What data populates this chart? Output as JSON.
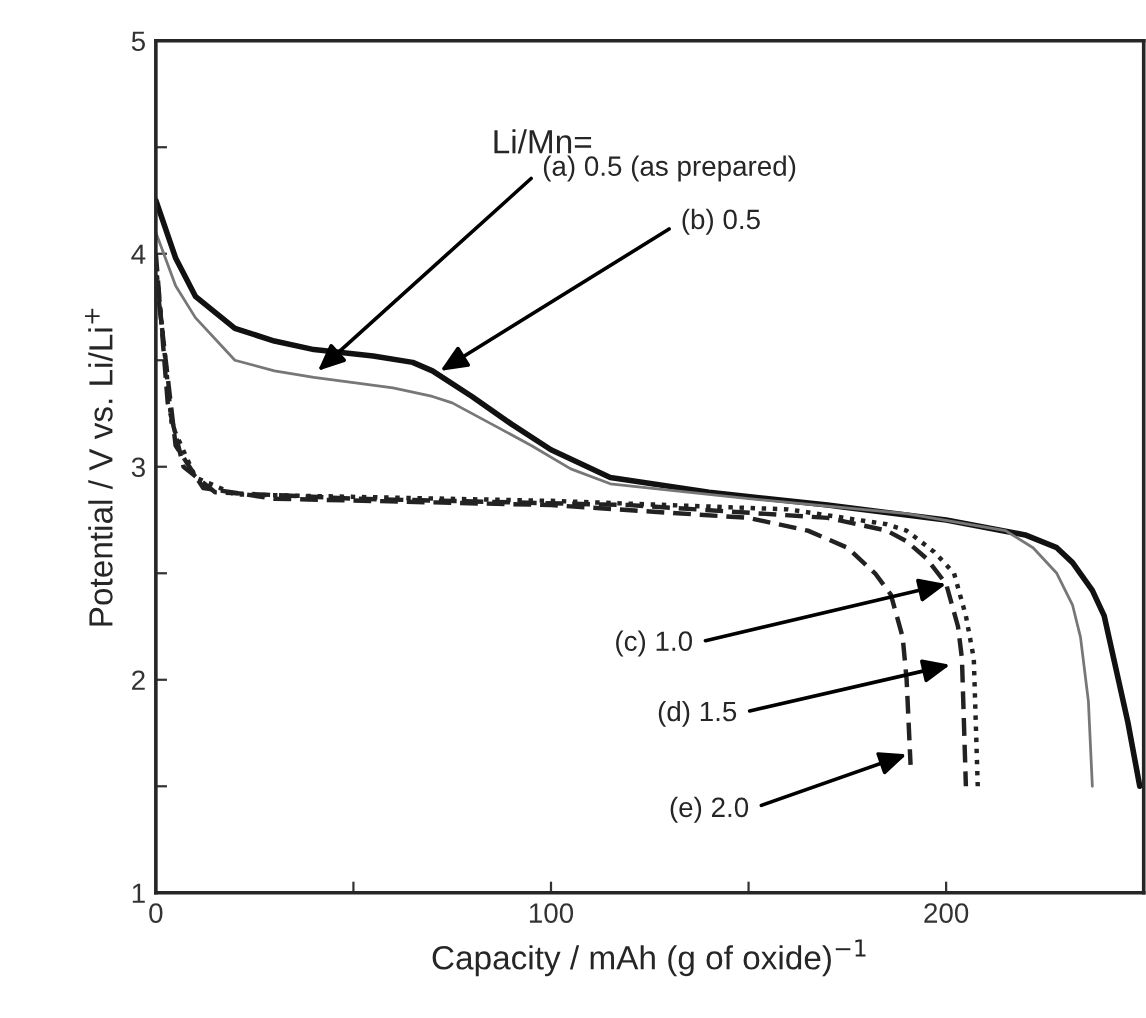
{
  "chart_data": {
    "type": "line",
    "xlabel": "Capacity / mAh (g of oxide)$^{−1}$",
    "ylabel": "Potential / V vs. Li/Li$^{+}$",
    "xlim": [
      0,
      250
    ],
    "ylim": [
      1,
      5
    ],
    "xticks": [
      0,
      {
        "value": 50,
        "label": null
      },
      100,
      {
        "value": 150,
        "label": null
      },
      200
    ],
    "yticks": [
      1,
      {
        "value": 1.5,
        "label": null
      },
      2,
      {
        "value": 2.5,
        "label": null
      },
      3,
      {
        "value": 3.5,
        "label": null
      },
      4,
      {
        "value": 4.5,
        "label": null
      },
      5
    ],
    "grid": false,
    "legend": false,
    "marker": "none",
    "series": [
      {
        "color": "#111111",
        "line_style": "solid",
        "x": [
          0,
          5,
          10,
          20,
          30,
          40,
          55,
          65,
          70,
          80,
          90,
          100,
          115,
          140,
          170,
          200,
          220,
          228,
          232,
          237,
          240,
          243,
          246,
          249
        ],
        "values": [
          4.25,
          3.98,
          3.8,
          3.65,
          3.59,
          3.55,
          3.52,
          3.49,
          3.45,
          3.33,
          3.2,
          3.08,
          2.95,
          2.88,
          2.82,
          2.75,
          2.68,
          2.62,
          2.55,
          2.42,
          2.3,
          2.05,
          1.8,
          1.5
        ]
      },
      {
        "color": "#777777",
        "line_style": "solid",
        "x": [
          0,
          5,
          10,
          20,
          30,
          40,
          60,
          70,
          75,
          85,
          95,
          105,
          115,
          150,
          190,
          215,
          222,
          228,
          232,
          234,
          236,
          237
        ],
        "values": [
          4.1,
          3.85,
          3.7,
          3.5,
          3.45,
          3.42,
          3.37,
          3.33,
          3.3,
          3.2,
          3.1,
          2.99,
          2.92,
          2.85,
          2.78,
          2.7,
          2.62,
          2.5,
          2.35,
          2.2,
          1.9,
          1.5
        ]
      },
      {
        "color": "#222222",
        "line_style": "dashed",
        "x": [
          0,
          3,
          7,
          15,
          50,
          120,
          170,
          185,
          190,
          195,
          200,
          203,
          204,
          205
        ],
        "values": [
          4.0,
          3.3,
          3.0,
          2.88,
          2.85,
          2.82,
          2.76,
          2.7,
          2.65,
          2.57,
          2.45,
          2.25,
          2.1,
          1.5
        ]
      },
      {
        "color": "#222222",
        "line_style": "dotted",
        "x": [
          0,
          4,
          10,
          20,
          100,
          160,
          185,
          190,
          197,
          202,
          205,
          207,
          208
        ],
        "values": [
          3.95,
          3.2,
          2.95,
          2.87,
          2.84,
          2.8,
          2.73,
          2.7,
          2.6,
          2.5,
          2.3,
          2.1,
          1.5
        ]
      },
      {
        "color": "#222222",
        "line_style": "dashed",
        "x": [
          0,
          5,
          12,
          30,
          100,
          150,
          165,
          175,
          182,
          186,
          189,
          190,
          191
        ],
        "values": [
          3.9,
          3.1,
          2.9,
          2.85,
          2.82,
          2.76,
          2.7,
          2.62,
          2.5,
          2.4,
          2.2,
          2.0,
          1.6
        ]
      }
    ],
    "annotations": [
      "Li/Mn=",
      {
        "text": "(a) 0.5 (as prepared)",
        "x": 41,
        "y": 3.45
      },
      {
        "text": "(b) 0.5",
        "x": 72,
        "y": 3.45
      },
      {
        "text": "(c) 1.0",
        "x": 200,
        "y": 2.45
      },
      {
        "text": "(d) 1.5",
        "x": 201,
        "y": 2.07
      },
      {
        "text": "(e) 2.0",
        "x": 190,
        "y": 1.65
      }
    ]
  }
}
